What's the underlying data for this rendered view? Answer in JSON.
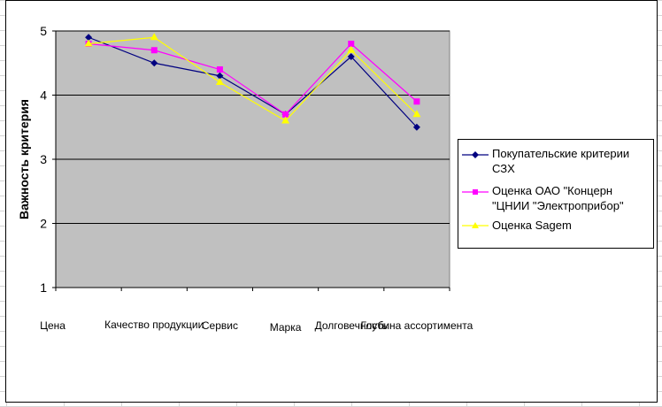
{
  "chart_data": {
    "type": "line",
    "categories": [
      "Цена",
      "Качество продукции",
      "Сервис",
      "Марка",
      "Долговечность",
      "Глубина ассортимента"
    ],
    "series": [
      {
        "name": "Покупательские критерии СЗХ",
        "values": [
          4.9,
          4.5,
          4.3,
          3.7,
          4.6,
          3.5
        ],
        "color": "#000080",
        "marker": "diamond"
      },
      {
        "name": "Оценка ОАО \"Концерн \"ЦНИИ \"Электроприбор\"",
        "values": [
          4.8,
          4.7,
          4.4,
          3.7,
          4.8,
          3.9
        ],
        "color": "#ff00ff",
        "marker": "square"
      },
      {
        "name": "Оценка Sagem",
        "values": [
          4.8,
          4.9,
          4.2,
          3.6,
          4.7,
          3.7
        ],
        "color": "#ffff00",
        "marker": "triangle"
      }
    ],
    "ylabel": "Важность критерия",
    "xlabel": "",
    "ylim": [
      1,
      5
    ],
    "yticks": [
      "1",
      "2",
      "3",
      "4",
      "5"
    ],
    "grid": true,
    "plot_background": "#c0c0c0",
    "legend_position": "right"
  }
}
